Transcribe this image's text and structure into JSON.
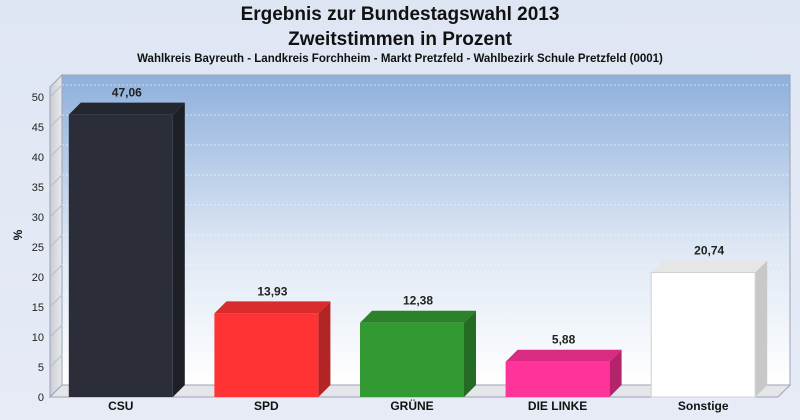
{
  "chart_data": {
    "type": "bar",
    "title": "Ergebnis zur Bundestagswahl 2013",
    "title_line2": "Zweitstimmen in Prozent",
    "subtitle": "Wahlkreis Bayreuth - Landkreis Forchheim  - Markt Pretzfeld - Wahlbezirk Schule Pretzfeld (0001)",
    "ylabel": "%",
    "xlabel": "",
    "ylim": [
      0,
      50
    ],
    "yticks": [
      "0",
      "5",
      "10",
      "15",
      "20",
      "25",
      "30",
      "35",
      "40",
      "45",
      "50"
    ],
    "grid": true,
    "categories": [
      "CSU",
      "SPD",
      "GRÜNE",
      "DIE LINKE",
      "Sonstige"
    ],
    "values": [
      47.06,
      13.93,
      12.38,
      5.88,
      20.74
    ],
    "value_labels": [
      "47,06",
      "13,93",
      "12,38",
      "5,88",
      "20,74"
    ],
    "colors": [
      "#2b2e38",
      "#ff3333",
      "#339933",
      "#ff3399",
      "#ffffff"
    ]
  }
}
